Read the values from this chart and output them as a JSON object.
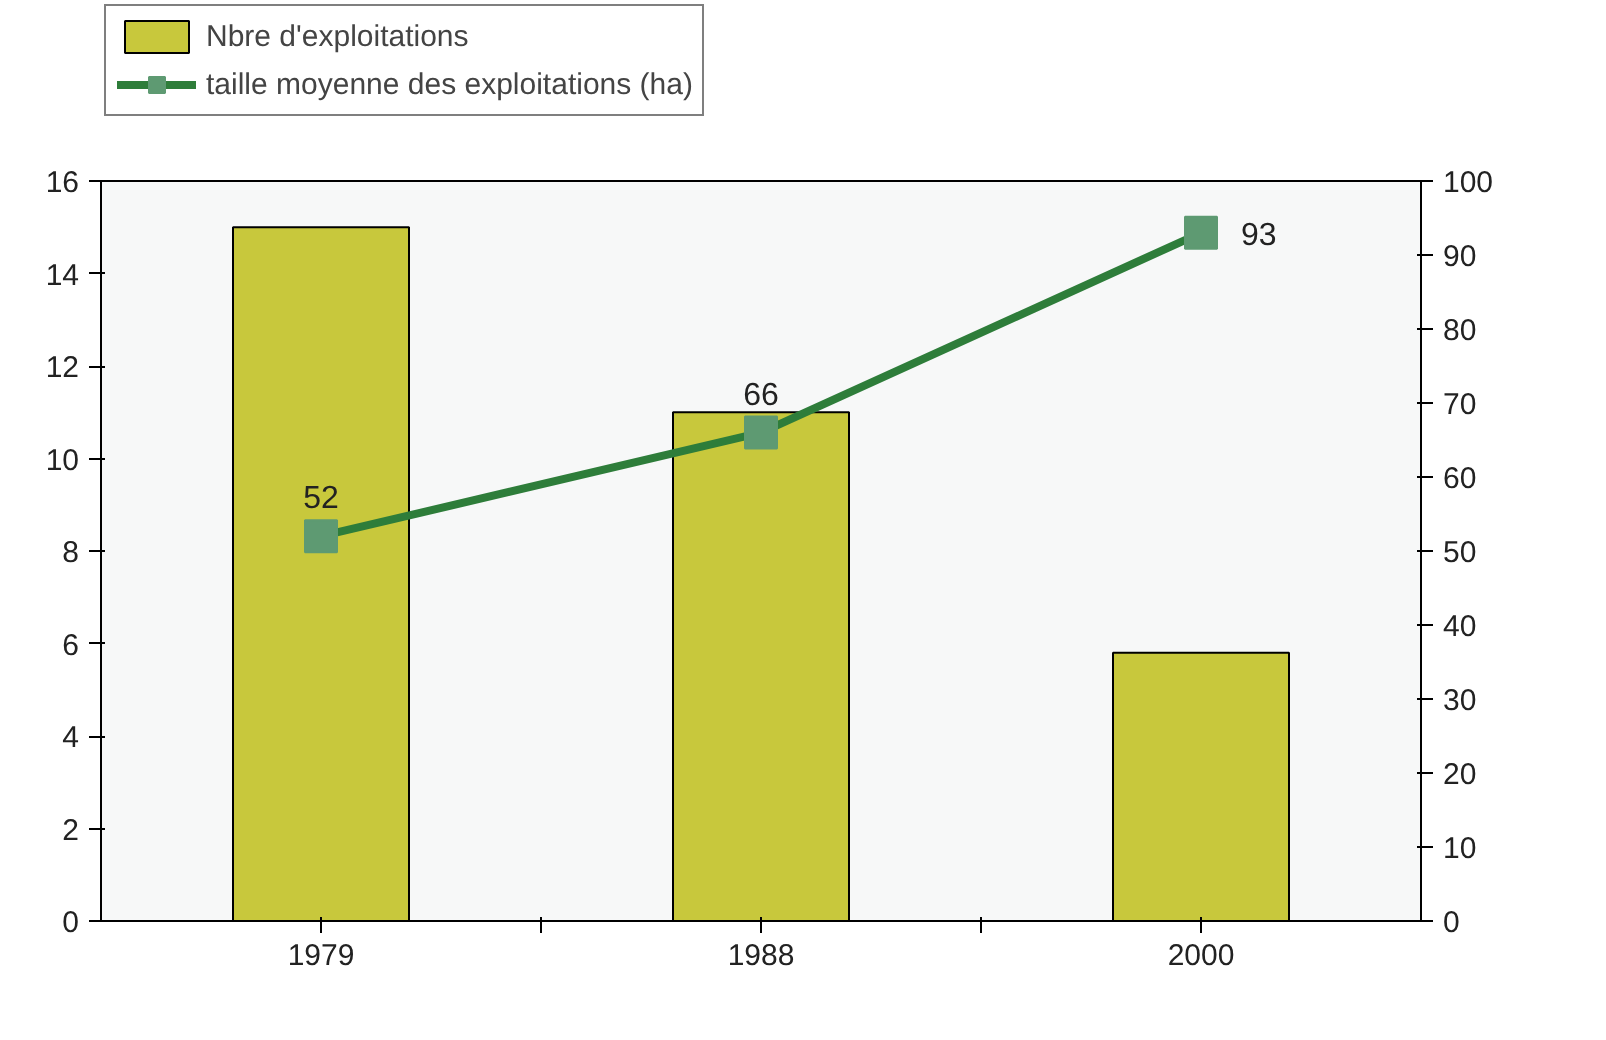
{
  "chart_data": {
    "type": "bar",
    "categories": [
      "1979",
      "1988",
      "2000"
    ],
    "series": [
      {
        "name": "Nbre d'exploitations",
        "color": "#c8c83c",
        "values": [
          15,
          11,
          5.8
        ]
      },
      {
        "name": "taille moyenne des exploitations (ha)",
        "type": "line",
        "axis": "y2",
        "color": "#2e7d3a",
        "marker": "square",
        "values": [
          52,
          66,
          93
        ],
        "value_labels": [
          "52",
          "66",
          "93"
        ]
      }
    ],
    "ylim": [
      0,
      16
    ],
    "yticks": [
      0,
      2,
      4,
      6,
      8,
      10,
      12,
      14,
      16
    ],
    "y2lim": [
      0,
      100
    ],
    "y2ticks": [
      0,
      10,
      20,
      30,
      40,
      50,
      60,
      70,
      80,
      90,
      100
    ],
    "grid": false,
    "legend": "top left"
  }
}
